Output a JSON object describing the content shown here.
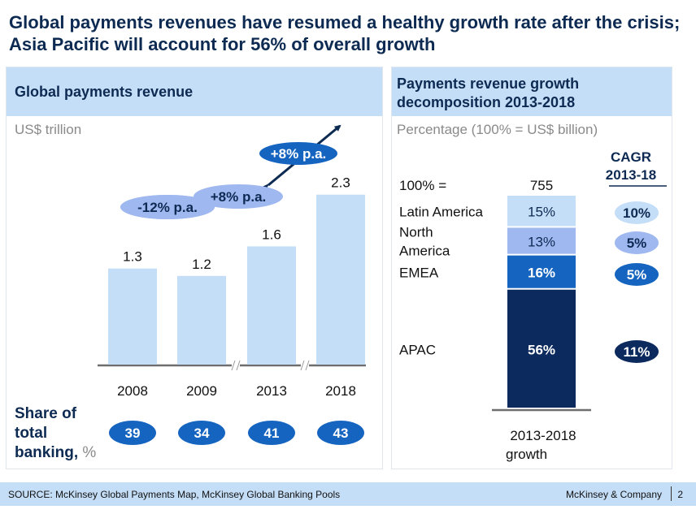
{
  "slide": {
    "title": "Global payments revenues have resumed a healthy growth rate after the crisis; Asia Pacific will account for 56% of overall growth"
  },
  "left_panel": {
    "header": "Global payments revenue",
    "unit": "US$ trillion",
    "share_label_bold_1": "Share of",
    "share_label_bold_2": "total",
    "share_label_bold_3": "banking,",
    "share_label_unit": "%"
  },
  "right_panel": {
    "header_line1": "Payments revenue growth",
    "header_line2": "decomposition 2013-2018",
    "unit": "Percentage (100% = US$ billion)"
  },
  "footer": {
    "source": "SOURCE: McKinsey Global Payments Map, McKinsey Global Banking Pools",
    "brand": "McKinsey & Company",
    "page": "2"
  },
  "colors": {
    "title": "#0d2a52",
    "header_bg": "#c5def7",
    "bar_light": "#c5def7",
    "bubble_light": "#9fb8f0",
    "bubble_mid": "#1565c0",
    "bubble_dark": "#0d2a5e",
    "seg_latam": "#c5def7",
    "seg_na": "#9fb8f0",
    "seg_emea": "#1565c0",
    "seg_apac": "#0d2a5e"
  },
  "chart_data": [
    {
      "type": "bar",
      "title": "Global payments revenue",
      "ylabel": "US$ trillion",
      "categories": [
        "2008",
        "2009",
        "2013",
        "2018"
      ],
      "values": [
        1.3,
        1.2,
        1.6,
        2.3
      ],
      "value_labels": [
        "1.3",
        "1.2",
        "1.6",
        "2.3"
      ],
      "axis_breaks_after": [
        "2009",
        "2013"
      ],
      "growth_annotations": [
        {
          "label": "-12% p.a.",
          "from": "2008",
          "to": "2009"
        },
        {
          "label": "+8% p.a.",
          "from": "2009",
          "to": "2013"
        },
        {
          "label": "+8% p.a.",
          "from": "2013",
          "to": "2018"
        }
      ],
      "share_of_total_banking_pct": {
        "label": "Share of total banking, %",
        "values": [
          39,
          34,
          41,
          43
        ]
      }
    },
    {
      "type": "bar",
      "stacked": true,
      "title": "Payments revenue growth decomposition 2013-2018",
      "ylabel": "Percentage (100% = US$ billion)",
      "total_label": "100% =",
      "total_value": 755,
      "category": "2013-2018 growth",
      "cagr_header": [
        "CAGR",
        "2013-18"
      ],
      "segments": [
        {
          "name": "Latin America",
          "share": 15,
          "share_label": "15%",
          "cagr_label": "10%"
        },
        {
          "name": "North America",
          "name_lines": [
            "North",
            "America"
          ],
          "share": 13,
          "share_label": "13%",
          "cagr_label": "5%"
        },
        {
          "name": "EMEA",
          "share": 16,
          "share_label": "16%",
          "cagr_label": "5%"
        },
        {
          "name": "APAC",
          "share": 56,
          "share_label": "56%",
          "cagr_label": "11%"
        }
      ]
    }
  ]
}
